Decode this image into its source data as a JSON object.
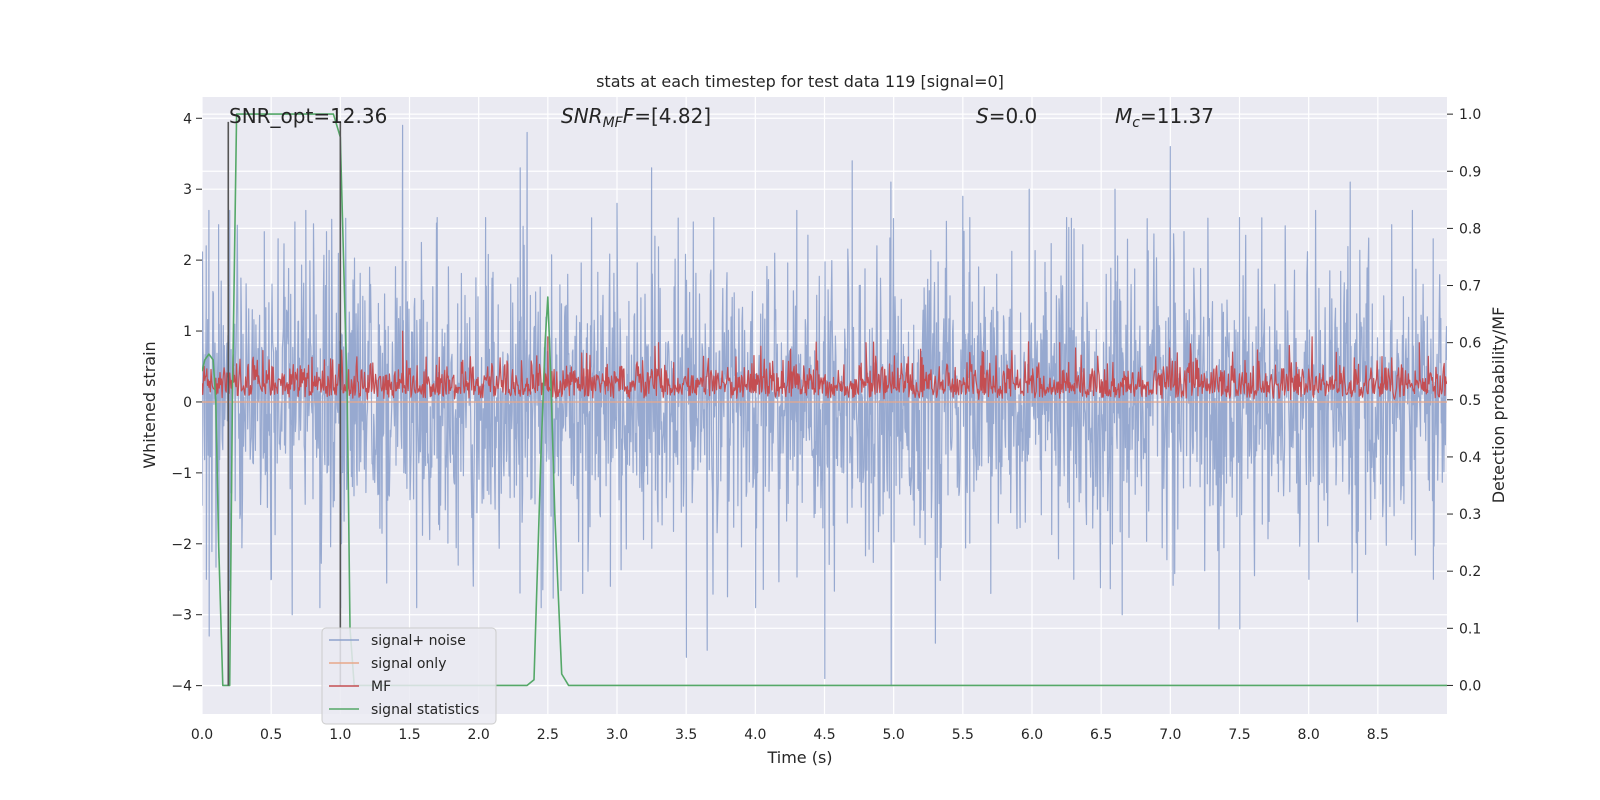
{
  "chart_data": {
    "type": "line",
    "title": "stats at each timestep for test data 119 [signal=0]",
    "xlabel": "Time (s)",
    "ylabel": "Whitened strain",
    "y2label": "Detection probability/MF",
    "xlim": [
      0,
      9
    ],
    "ylim": [
      -4.4,
      4.3
    ],
    "y2lim": [
      -0.05,
      1.03
    ],
    "grid": true,
    "background": "#eaeaf2",
    "x_ticks": [
      "0.0",
      "0.5",
      "1.0",
      "1.5",
      "2.0",
      "2.5",
      "3.0",
      "3.5",
      "4.0",
      "4.5",
      "5.0",
      "5.5",
      "6.0",
      "6.5",
      "7.0",
      "7.5",
      "8.0",
      "8.5"
    ],
    "y_ticks": [
      "4",
      "3",
      "2",
      "1",
      "0",
      "−1",
      "−2",
      "−3",
      "−4"
    ],
    "y2_ticks": [
      "1.0",
      "0.9",
      "0.8",
      "0.7",
      "0.6",
      "0.5",
      "0.4",
      "0.3",
      "0.2",
      "0.1",
      "0.0"
    ],
    "annotations": {
      "snr_opt": "SNR_opt=12.36",
      "snr_mf_var": "SNR",
      "snr_mf_sub": "MF",
      "snr_mf_val": "=[4.82]",
      "s_var": "S",
      "s_val": "=0.0",
      "mc_var": "M",
      "mc_sub": "c",
      "mc_val": "=11.37"
    },
    "vertical_markers_x": [
      0.19,
      1.0
    ],
    "legend": {
      "placement": "lower-left",
      "entries": [
        {
          "label": "signal+ noise",
          "color": "#8ea2cc"
        },
        {
          "label": "signal only",
          "color": "#e8a88a"
        },
        {
          "label": "MF",
          "color": "#c44e52"
        },
        {
          "label": "signal statistics",
          "color": "#55a868"
        }
      ]
    },
    "series": [
      {
        "name": "signal+ noise",
        "axis": "left",
        "color": "#8ea2cc",
        "description_values": {
          "approx_range": [
            -4.0,
            4.0
          ],
          "typical_envelope": [
            -2.5,
            2.5
          ]
        },
        "peaks": [
          [
            0.03,
            2.2
          ],
          [
            0.05,
            2.7
          ],
          [
            0.12,
            2.5
          ],
          [
            0.2,
            2.7
          ],
          [
            0.45,
            2.4
          ],
          [
            0.55,
            2.3
          ],
          [
            0.75,
            2.7
          ],
          [
            0.9,
            2.4
          ],
          [
            1.0,
            3.1
          ],
          [
            1.45,
            3.9
          ],
          [
            1.7,
            2.6
          ],
          [
            2.05,
            2.6
          ],
          [
            2.3,
            3.3
          ],
          [
            2.35,
            3.8
          ],
          [
            3.0,
            2.8
          ],
          [
            3.25,
            3.3
          ],
          [
            3.7,
            2.6
          ],
          [
            4.3,
            2.7
          ],
          [
            4.7,
            3.4
          ],
          [
            4.98,
            3.1
          ],
          [
            5.5,
            2.9
          ],
          [
            5.55,
            2.6
          ],
          [
            5.98,
            3.0
          ],
          [
            6.25,
            2.6
          ],
          [
            6.6,
            3.0
          ],
          [
            7.0,
            3.6
          ],
          [
            7.5,
            2.6
          ],
          [
            8.05,
            2.7
          ],
          [
            8.3,
            3.1
          ],
          [
            8.6,
            2.5
          ],
          [
            8.75,
            2.7
          ],
          [
            8.9,
            2.3
          ]
        ],
        "troughs": [
          [
            0.03,
            -2.5
          ],
          [
            0.05,
            -3.3
          ],
          [
            0.12,
            -2.2
          ],
          [
            0.2,
            -2.3
          ],
          [
            0.5,
            -2.5
          ],
          [
            0.65,
            -3.0
          ],
          [
            0.85,
            -2.9
          ],
          [
            1.0,
            -2.9
          ],
          [
            1.55,
            -2.9
          ],
          [
            1.85,
            -2.3
          ],
          [
            2.45,
            -2.9
          ],
          [
            2.75,
            -2.7
          ],
          [
            2.95,
            -2.6
          ],
          [
            3.5,
            -3.6
          ],
          [
            3.65,
            -3.5
          ],
          [
            4.0,
            -2.9
          ],
          [
            4.5,
            -3.9
          ],
          [
            4.98,
            -4.0
          ],
          [
            5.3,
            -3.4
          ],
          [
            5.7,
            -2.7
          ],
          [
            6.3,
            -2.5
          ],
          [
            6.65,
            -3.0
          ],
          [
            7.35,
            -3.2
          ],
          [
            7.5,
            -3.2
          ],
          [
            8.0,
            -2.5
          ],
          [
            8.35,
            -3.1
          ],
          [
            8.9,
            -2.5
          ]
        ]
      },
      {
        "name": "signal only",
        "axis": "left",
        "color": "#e8a88a",
        "x": [
          0,
          9
        ],
        "y": [
          0,
          0
        ]
      },
      {
        "name": "MF",
        "axis": "right",
        "color": "#c44e52",
        "description_values": {
          "approx_range": [
            0.5,
            0.62
          ],
          "typical_range": [
            0.51,
            0.58
          ]
        },
        "peaks": [
          [
            1.45,
            0.62
          ],
          [
            2.5,
            0.61
          ],
          [
            3.3,
            0.6
          ],
          [
            4.8,
            0.6
          ],
          [
            6.2,
            0.6
          ],
          [
            8.8,
            0.6
          ]
        ]
      },
      {
        "name": "signal statistics",
        "axis": "right",
        "color": "#55a868",
        "x": [
          0.0,
          0.02,
          0.05,
          0.08,
          0.1,
          0.12,
          0.15,
          0.18,
          0.2,
          0.22,
          0.25,
          0.3,
          0.5,
          0.7,
          0.95,
          1.0,
          1.05,
          1.07,
          1.1,
          1.2,
          2.35,
          2.4,
          2.45,
          2.48,
          2.5,
          2.52,
          2.55,
          2.6,
          2.65,
          3.0,
          9.0
        ],
        "y": [
          0.55,
          0.57,
          0.58,
          0.57,
          0.5,
          0.25,
          0.0,
          0.0,
          0.0,
          0.5,
          1.0,
          1.0,
          1.0,
          1.0,
          1.0,
          0.96,
          0.5,
          0.1,
          0.0,
          0.0,
          0.0,
          0.01,
          0.4,
          0.6,
          0.68,
          0.55,
          0.3,
          0.02,
          0.0,
          0.0,
          0.0
        ]
      }
    ]
  }
}
